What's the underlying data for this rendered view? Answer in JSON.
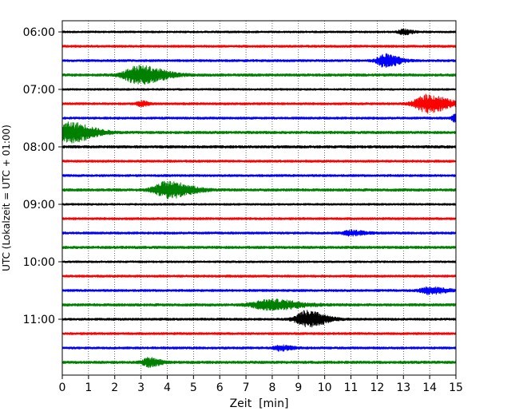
{
  "chart_data": {
    "type": "line",
    "title": "",
    "xlabel": "Zeit  [min]",
    "ylabel": "UTC (Lokalzeit = UTC + 01:00)",
    "xlim": [
      0,
      15
    ],
    "x_ticks": [
      0,
      1,
      2,
      3,
      4,
      5,
      6,
      7,
      8,
      9,
      10,
      11,
      12,
      13,
      14,
      15
    ],
    "y_tick_labels": [
      "06:00",
      "07:00",
      "08:00",
      "09:00",
      "10:00",
      "11:00"
    ],
    "grid": "vertical dotted lines at each minute",
    "trace_interval_minutes": 15,
    "trace_colors": [
      "#000000",
      "#ff0000",
      "#0000ff",
      "#008000"
    ],
    "traces": [
      {
        "start": "06:00",
        "color": "#000000",
        "noise": 0.3,
        "events": [
          {
            "t": 13.0,
            "amp": 3,
            "w": 0.4
          }
        ]
      },
      {
        "start": "06:15",
        "color": "#ff0000",
        "noise": 0.35,
        "events": []
      },
      {
        "start": "06:30",
        "color": "#0000ff",
        "noise": 0.35,
        "events": [
          {
            "t": 12.3,
            "amp": 8,
            "w": 0.6
          }
        ]
      },
      {
        "start": "06:45",
        "color": "#008000",
        "noise": 0.4,
        "events": [
          {
            "t": 2.9,
            "amp": 11,
            "w": 1.1
          }
        ]
      },
      {
        "start": "07:00",
        "color": "#000000",
        "noise": 0.3,
        "events": []
      },
      {
        "start": "07:15",
        "color": "#ff0000",
        "noise": 0.35,
        "events": [
          {
            "t": 3.0,
            "amp": 3,
            "w": 0.3
          },
          {
            "t": 13.9,
            "amp": 11,
            "w": 0.9
          }
        ]
      },
      {
        "start": "07:30",
        "color": "#0000ff",
        "noise": 0.35,
        "events": [
          {
            "t": 15.0,
            "amp": 6,
            "w": 0.3
          }
        ]
      },
      {
        "start": "07:45",
        "color": "#008000",
        "noise": 0.4,
        "events": [
          {
            "t": 0.3,
            "amp": 12,
            "w": 1.0
          }
        ]
      },
      {
        "start": "08:00",
        "color": "#000000",
        "noise": 0.4,
        "events": []
      },
      {
        "start": "08:15",
        "color": "#ff0000",
        "noise": 0.35,
        "events": []
      },
      {
        "start": "08:30",
        "color": "#0000ff",
        "noise": 0.35,
        "events": []
      },
      {
        "start": "08:45",
        "color": "#008000",
        "noise": 0.4,
        "events": [
          {
            "t": 4.0,
            "amp": 10,
            "w": 1.0
          }
        ]
      },
      {
        "start": "09:00",
        "color": "#000000",
        "noise": 0.3,
        "events": []
      },
      {
        "start": "09:15",
        "color": "#ff0000",
        "noise": 0.35,
        "events": []
      },
      {
        "start": "09:30",
        "color": "#0000ff",
        "noise": 0.35,
        "events": [
          {
            "t": 11.0,
            "amp": 3,
            "w": 0.6
          }
        ]
      },
      {
        "start": "09:45",
        "color": "#008000",
        "noise": 0.4,
        "events": []
      },
      {
        "start": "10:00",
        "color": "#000000",
        "noise": 0.3,
        "events": []
      },
      {
        "start": "10:15",
        "color": "#ff0000",
        "noise": 0.35,
        "events": []
      },
      {
        "start": "10:30",
        "color": "#0000ff",
        "noise": 0.35,
        "events": [
          {
            "t": 14.0,
            "amp": 4,
            "w": 0.7
          }
        ]
      },
      {
        "start": "10:45",
        "color": "#008000",
        "noise": 0.4,
        "events": [
          {
            "t": 7.9,
            "amp": 6,
            "w": 1.3
          }
        ]
      },
      {
        "start": "11:00",
        "color": "#000000",
        "noise": 0.35,
        "events": [
          {
            "t": 9.3,
            "amp": 10,
            "w": 0.8
          }
        ]
      },
      {
        "start": "11:15",
        "color": "#ff0000",
        "noise": 0.35,
        "events": []
      },
      {
        "start": "11:30",
        "color": "#0000ff",
        "noise": 0.35,
        "events": [
          {
            "t": 8.3,
            "amp": 3,
            "w": 0.5
          }
        ]
      },
      {
        "start": "11:45",
        "color": "#008000",
        "noise": 0.4,
        "events": [
          {
            "t": 3.3,
            "amp": 5,
            "w": 0.5
          }
        ]
      }
    ]
  }
}
